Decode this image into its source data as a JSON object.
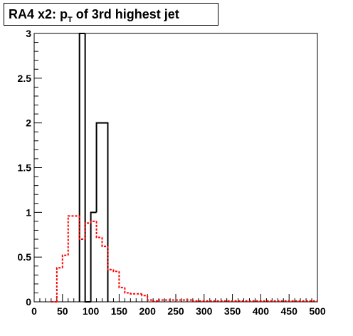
{
  "chart_data": {
    "type": "step-histogram",
    "title": {
      "prefix": "RA4 x2: p",
      "subscript": "T",
      "suffix": " of 3rd highest jet"
    },
    "xlabel": "",
    "ylabel": "",
    "xlim": [
      0,
      500
    ],
    "ylim": [
      0,
      3
    ],
    "xticks": [
      "0",
      "50",
      "100",
      "150",
      "200",
      "250",
      "300",
      "350",
      "400",
      "450",
      "500"
    ],
    "yticks": [
      "0",
      "0.5",
      "1",
      "1.5",
      "2",
      "2.5",
      "3"
    ],
    "grid": false,
    "bin_width": 10,
    "series": [
      {
        "style": "solid",
        "color": "#000000",
        "bins": [
          {
            "x0": 80,
            "x1": 90,
            "y": 3
          },
          {
            "x0": 90,
            "x1": 100,
            "y": 0
          },
          {
            "x0": 100,
            "x1": 110,
            "y": 1
          },
          {
            "x0": 110,
            "x1": 130,
            "y": 2
          }
        ]
      },
      {
        "style": "dashed",
        "color": "#ff0000",
        "bins": [
          {
            "x0": 30,
            "x1": 40,
            "y": 0
          },
          {
            "x0": 40,
            "x1": 50,
            "y": 0.38
          },
          {
            "x0": 50,
            "x1": 60,
            "y": 0.52
          },
          {
            "x0": 60,
            "x1": 80,
            "y": 0.96
          },
          {
            "x0": 80,
            "x1": 90,
            "y": 0.7
          },
          {
            "x0": 90,
            "x1": 100,
            "y": 0.88
          },
          {
            "x0": 100,
            "x1": 110,
            "y": 0.9
          },
          {
            "x0": 110,
            "x1": 120,
            "y": 0.72
          },
          {
            "x0": 120,
            "x1": 130,
            "y": 0.62
          },
          {
            "x0": 130,
            "x1": 140,
            "y": 0.36
          },
          {
            "x0": 140,
            "x1": 150,
            "y": 0.34
          },
          {
            "x0": 150,
            "x1": 160,
            "y": 0.16
          },
          {
            "x0": 160,
            "x1": 170,
            "y": 0.1
          },
          {
            "x0": 170,
            "x1": 190,
            "y": 0.09
          },
          {
            "x0": 190,
            "x1": 200,
            "y": 0.07
          },
          {
            "x0": 200,
            "x1": 210,
            "y": 0.02
          },
          {
            "x0": 210,
            "x1": 220,
            "y": 0.01
          },
          {
            "x0": 220,
            "x1": 280,
            "y": 0.02
          },
          {
            "x0": 280,
            "x1": 500,
            "y": 0.01
          }
        ]
      }
    ]
  }
}
